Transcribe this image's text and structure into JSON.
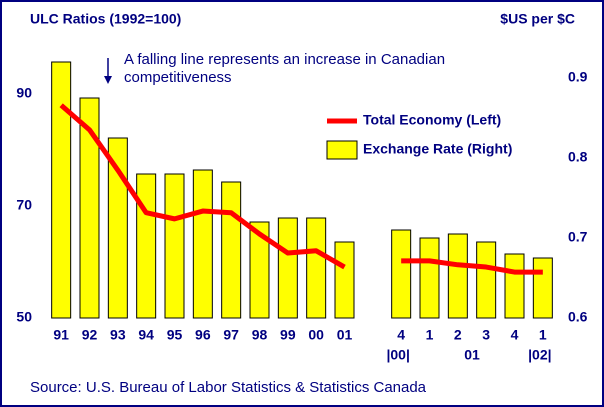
{
  "chart_data": {
    "type": "bar_line",
    "title": "ULC Ratios (1992=100)",
    "y2_title": "$US per $C",
    "annotation": [
      "A falling line represents an increase in Canadian",
      "competitiveness"
    ],
    "source": "Source: U.S. Bureau of Labor Statistics & Statistics Canada",
    "categories": [
      "91",
      "92",
      "93",
      "94",
      "95",
      "96",
      "97",
      "98",
      "99",
      "00",
      "01",
      null,
      "4",
      "1",
      "2",
      "3",
      "4",
      "1"
    ],
    "x_sublabels": [
      "|00|",
      "01",
      "|02|"
    ],
    "series": [
      {
        "name": "Total Economy (Left)",
        "type": "line",
        "color": "#ff0000",
        "axis": "y",
        "values": [
          88.0,
          83.6,
          76.4,
          68.8,
          67.7,
          69.1,
          68.8,
          65.0,
          61.6,
          62.0,
          59.1,
          null,
          60.2,
          60.2,
          59.5,
          59.1,
          58.2,
          58.2
        ]
      },
      {
        "name": "Exchange Rate (Right)",
        "type": "bar",
        "color": "#ffff00",
        "axis": "y2",
        "values": [
          0.92,
          0.875,
          0.825,
          0.78,
          0.78,
          0.785,
          0.77,
          0.72,
          0.725,
          0.725,
          0.695,
          null,
          0.71,
          0.7,
          0.705,
          0.695,
          0.68,
          0.675
        ]
      }
    ],
    "ylim": [
      50,
      100
    ],
    "yticks": [
      50,
      70,
      90
    ],
    "y2lim": [
      0.6,
      0.95
    ],
    "y2ticks": [
      0.6,
      0.7,
      0.8,
      0.9
    ],
    "grid": false
  }
}
